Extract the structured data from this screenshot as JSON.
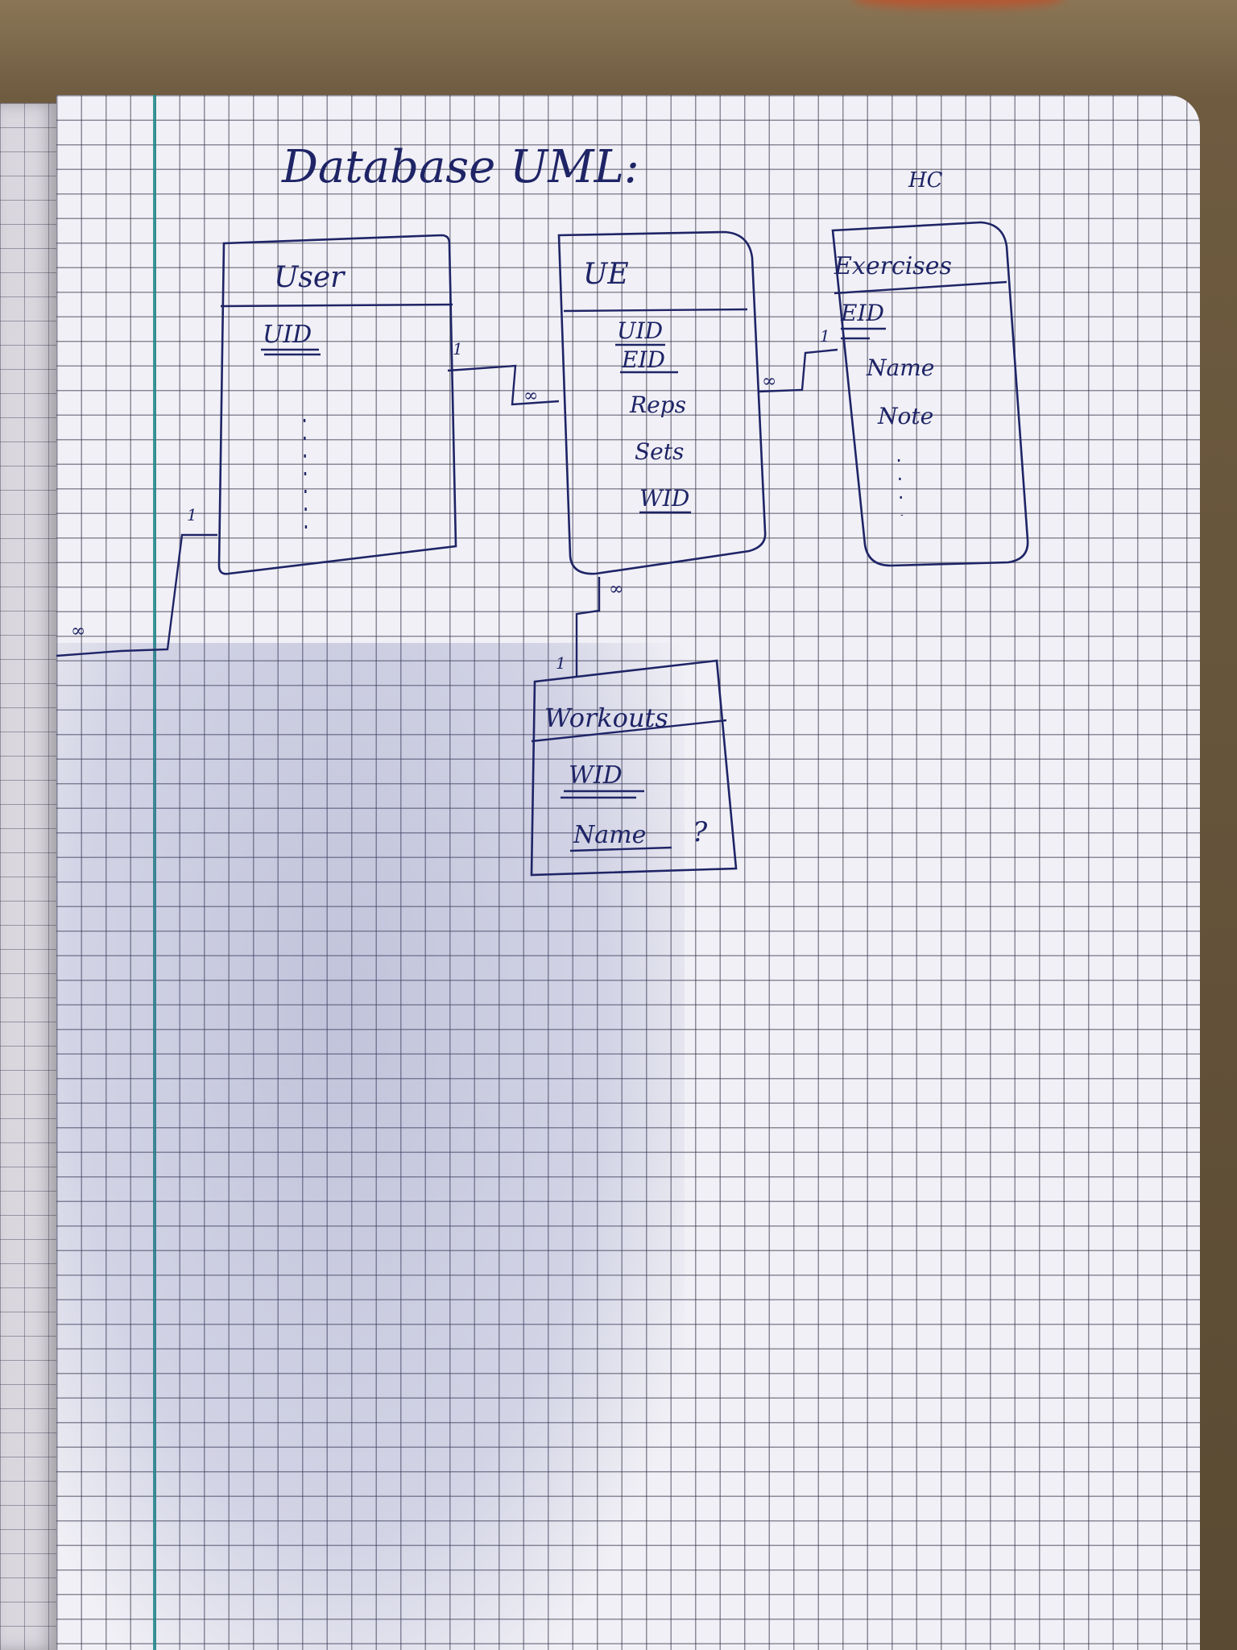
{
  "title": "Database UML:",
  "corner_note": "HC",
  "entities": [
    {
      "name": "User",
      "attributes": [
        "UID"
      ],
      "key_attributes": [
        "UID"
      ]
    },
    {
      "name": "UE",
      "attributes": [
        "UID",
        "EID",
        "Reps",
        "Sets",
        "WID"
      ],
      "key_attributes": [
        "UID",
        "EID",
        "WID"
      ]
    },
    {
      "name": "Exercises",
      "attributes": [
        "EID",
        "Name",
        "Note"
      ],
      "key_attributes": [
        "EID"
      ]
    },
    {
      "name": "Workouts",
      "attributes": [
        "WID",
        "Name"
      ],
      "key_attributes": [
        "WID",
        "Name"
      ],
      "note": "?"
    }
  ],
  "relations": [
    {
      "from": "User",
      "to": "UE",
      "from_card": "1",
      "to_card": "∞"
    },
    {
      "from": "UE",
      "to": "Exercises",
      "from_card": "∞",
      "to_card": "1"
    },
    {
      "from": "UE",
      "to": "Workouts",
      "from_card": "∞",
      "to_card": "1"
    },
    {
      "from": "User",
      "to": "",
      "from_card": "1",
      "to_card": "∞"
    }
  ],
  "colors": {
    "ink": "#1e2466",
    "margin": "#1f8a8a",
    "paper": "#f1f0f6"
  }
}
